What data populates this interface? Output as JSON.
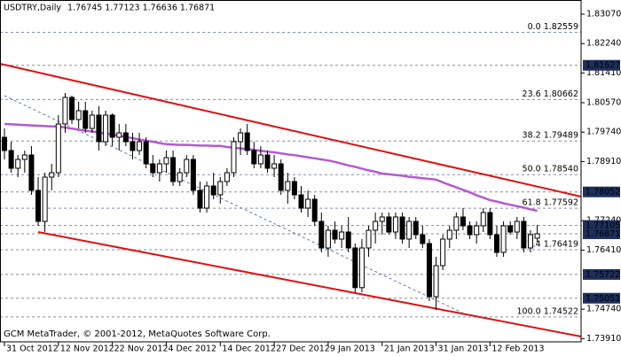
{
  "chart_data": {
    "type": "candlestick",
    "title": "USDTRY,Daily",
    "subtitle": "1.76745 1.77123 1.76636 1.76871",
    "footer": "GCM MetaTrader, © 2001-2012, MetaQuotes Software Corp.",
    "categories": [
      "31 Oct 2012",
      null,
      null,
      null,
      null,
      null,
      null,
      null,
      "12 Nov 2012",
      null,
      null,
      null,
      null,
      null,
      null,
      null,
      "22 Nov 2012",
      null,
      null,
      null,
      null,
      null,
      null,
      null,
      "4 Dec 2012",
      null,
      null,
      null,
      null,
      null,
      null,
      null,
      "14 Dec 2012",
      null,
      null,
      null,
      null,
      null,
      null,
      null,
      "27 Dec 2012",
      null,
      null,
      null,
      null,
      null,
      null,
      null,
      "9 Jan 2013",
      null,
      null,
      null,
      null,
      null,
      null,
      null,
      "21 Jan 2013",
      null,
      null,
      null,
      null,
      null,
      null,
      null,
      "31 Jan 2013",
      null,
      null,
      null,
      null,
      null,
      null,
      null,
      "12 Feb 2013",
      null,
      null,
      null,
      null,
      null,
      null,
      null
    ],
    "open": [
      1.79595,
      1.7922,
      1.7872,
      1.7897,
      1.79095,
      1.78095,
      1.7722,
      1.7847,
      1.78595,
      1.7997,
      1.8072,
      1.80095,
      1.80345,
      1.79845,
      1.8022,
      1.7947,
      1.8022,
      1.79595,
      1.7972,
      1.7947,
      1.7922,
      1.7947,
      1.78845,
      1.78595,
      1.78845,
      1.7902,
      1.78345,
      1.78595,
      1.7897,
      1.78095,
      1.77595,
      1.7822,
      1.7797,
      1.78345,
      1.78595,
      1.7947,
      1.7972,
      1.7922,
      1.78845,
      1.79095,
      1.7872,
      1.78845,
      1.78095,
      1.78345,
      1.7797,
      1.77595,
      1.77845,
      1.7722,
      1.7647,
      1.7697,
      1.7672,
      1.7692,
      1.7647,
      1.7535,
      1.7647,
      1.7697,
      1.7722,
      1.77345,
      1.7692,
      1.77345,
      1.7672,
      1.7722,
      1.76845,
      1.76595,
      1.75095,
      1.7597,
      1.7672,
      1.7697,
      1.77345,
      1.77095,
      1.76845,
      1.77095,
      1.7747,
      1.76845,
      1.76345,
      1.77095,
      1.7692,
      1.7722,
      1.7647,
      1.76745
    ],
    "high": [
      1.79845,
      1.7947,
      1.79095,
      1.7922,
      1.79345,
      1.7847,
      1.78595,
      1.78845,
      1.8022,
      1.80845,
      1.8077,
      1.80595,
      1.80595,
      1.80345,
      1.8047,
      1.80345,
      1.8027,
      1.7997,
      1.7997,
      1.7972,
      1.7972,
      1.79595,
      1.79095,
      1.7897,
      1.7922,
      1.7922,
      1.7872,
      1.79095,
      1.79095,
      1.78345,
      1.78345,
      1.78595,
      1.7847,
      1.7872,
      1.79595,
      1.79845,
      1.7997,
      1.7947,
      1.79345,
      1.7922,
      1.79095,
      1.7897,
      1.78595,
      1.7847,
      1.7822,
      1.78095,
      1.7797,
      1.7747,
      1.77095,
      1.7722,
      1.77095,
      1.77345,
      1.76595,
      1.7672,
      1.77095,
      1.7747,
      1.7747,
      1.7747,
      1.7747,
      1.7747,
      1.77345,
      1.77345,
      1.77095,
      1.7672,
      1.7622,
      1.76845,
      1.77095,
      1.7747,
      1.77595,
      1.7722,
      1.7722,
      1.77595,
      1.77595,
      1.77095,
      1.7722,
      1.7722,
      1.77345,
      1.77345,
      1.7697,
      1.77123
    ],
    "low": [
      1.7897,
      1.78595,
      1.7847,
      1.78595,
      1.7797,
      1.77095,
      1.7692,
      1.78095,
      1.7847,
      1.7972,
      1.7997,
      1.79845,
      1.7972,
      1.7972,
      1.7922,
      1.79345,
      1.79345,
      1.7922,
      1.79345,
      1.7897,
      1.79095,
      1.7872,
      1.7847,
      1.78345,
      1.78595,
      1.7822,
      1.7822,
      1.7847,
      1.7797,
      1.7747,
      1.7747,
      1.77845,
      1.7772,
      1.7822,
      1.7847,
      1.79095,
      1.79095,
      1.7872,
      1.7872,
      1.78595,
      1.7847,
      1.7797,
      1.7772,
      1.77845,
      1.7747,
      1.77345,
      1.77095,
      1.76345,
      1.7622,
      1.76595,
      1.7647,
      1.76345,
      1.7522,
      1.7522,
      1.7622,
      1.76595,
      1.76845,
      1.76845,
      1.7672,
      1.76595,
      1.7647,
      1.7672,
      1.7647,
      1.7497,
      1.7472,
      1.75845,
      1.7647,
      1.7672,
      1.7697,
      1.7672,
      1.76595,
      1.7692,
      1.7672,
      1.7622,
      1.7622,
      1.76845,
      1.7672,
      1.76345,
      1.76345,
      1.76636
    ],
    "close": [
      1.7922,
      1.7872,
      1.7897,
      1.79095,
      1.78095,
      1.7722,
      1.7847,
      1.78595,
      1.7997,
      1.8072,
      1.80095,
      1.80345,
      1.79845,
      1.8022,
      1.7947,
      1.8022,
      1.79595,
      1.7972,
      1.7947,
      1.7922,
      1.7947,
      1.78845,
      1.78595,
      1.78845,
      1.7902,
      1.78345,
      1.78595,
      1.7897,
      1.78095,
      1.77595,
      1.7822,
      1.7797,
      1.78345,
      1.78595,
      1.7947,
      1.7972,
      1.7922,
      1.78845,
      1.79095,
      1.7872,
      1.78845,
      1.78095,
      1.78345,
      1.7797,
      1.77595,
      1.77845,
      1.7722,
      1.7647,
      1.7697,
      1.7672,
      1.7692,
      1.7647,
      1.7535,
      1.7647,
      1.7697,
      1.7722,
      1.77345,
      1.7692,
      1.77345,
      1.7672,
      1.7722,
      1.76845,
      1.76595,
      1.75095,
      1.7597,
      1.7672,
      1.7697,
      1.77345,
      1.77095,
      1.76845,
      1.77095,
      1.7747,
      1.76845,
      1.76345,
      1.77095,
      1.7692,
      1.7722,
      1.7647,
      1.76845,
      1.76871
    ],
    "up_color": "#ffffff",
    "down_color": "#000000",
    "moving_average": {
      "color": "#b35ad0",
      "values": [
        1.7997,
        1.7996,
        1.7995,
        1.7994,
        1.7993,
        1.7992,
        1.7991,
        1.799,
        1.799,
        1.7987,
        1.7984,
        1.7981,
        1.7978,
        1.7976,
        1.7973,
        1.797,
        1.7967,
        1.7964,
        1.796,
        1.7957,
        1.7953,
        1.795,
        1.7947,
        1.7943,
        1.794,
        1.7939,
        1.7938,
        1.7938,
        1.7937,
        1.7936,
        1.7936,
        1.7935,
        1.7935,
        1.7932,
        1.793,
        1.7928,
        1.7926,
        1.7924,
        1.7921,
        1.7919,
        1.7917,
        1.7914,
        1.7911,
        1.7909,
        1.7906,
        1.7903,
        1.79,
        1.7897,
        1.7894,
        1.789,
        1.7885,
        1.788,
        1.7876,
        1.7871,
        1.7866,
        1.7862,
        1.7857,
        1.7855,
        1.7853,
        1.7851,
        1.7848,
        1.7846,
        1.7844,
        1.7842,
        1.784,
        1.7832,
        1.7825,
        1.7818,
        1.7811,
        1.7804,
        1.7796,
        1.7789,
        1.7782,
        1.7778,
        1.7773,
        1.7769,
        1.7765,
        1.7761,
        1.7756,
        1.7752
      ]
    },
    "trendlines": [
      {
        "color": "#e01010",
        "dashed": false,
        "x": [
          -0.66,
          85.5
        ],
        "values": [
          1.8167,
          1.7792
        ]
      },
      {
        "color": "#e01010",
        "dashed": false,
        "x": [
          5,
          85.5
        ],
        "values": [
          1.7692,
          1.7397
        ]
      },
      {
        "color": "#5a78b0",
        "dashed": true,
        "x": [
          0,
          68.4
        ],
        "values": [
          1.8077,
          1.74595
        ]
      }
    ],
    "fib_levels": {
      "color": "#3f63b5",
      "levels": [
        {
          "label": "0.0 1.82559",
          "value": 1.82559
        },
        {
          "label": "23.6 1.80662",
          "value": 1.80662
        },
        {
          "label": "38.2 1.79489",
          "value": 1.79489
        },
        {
          "label": "50.0 1.78540",
          "value": 1.7854
        },
        {
          "label": "61.8 1.77592",
          "value": 1.77592
        },
        {
          "label": "76.4 1.76419",
          "value": 1.76419
        },
        {
          "label": "100.0 1.74522",
          "value": 1.74522
        }
      ]
    },
    "price_lines": {
      "box_color": "#1e2f5c",
      "values": [
        1.81627,
        1.78052,
        1.77105,
        1.76871,
        1.75722,
        1.75051
      ]
    },
    "xlim": [
      -0.66,
      85.5
    ],
    "ylim": [
      1.7382,
      1.8347
    ],
    "yticks": [
      {
        "value": 1.8307,
        "label": "1.83070"
      },
      {
        "value": 1.8224,
        "label": "1.82240"
      },
      {
        "value": 1.8141,
        "label": "1.81410"
      },
      {
        "value": 1.8057,
        "label": "1.80570"
      },
      {
        "value": 1.7974,
        "label": "1.79740"
      },
      {
        "value": 1.7891,
        "label": "1.78910"
      },
      {
        "value": 1.7724,
        "label": "1.77240"
      },
      {
        "value": 1.7641,
        "label": "1.76410"
      },
      {
        "value": 1.7474,
        "label": "1.74740"
      },
      {
        "value": 1.7391,
        "label": "1.73910"
      }
    ]
  }
}
